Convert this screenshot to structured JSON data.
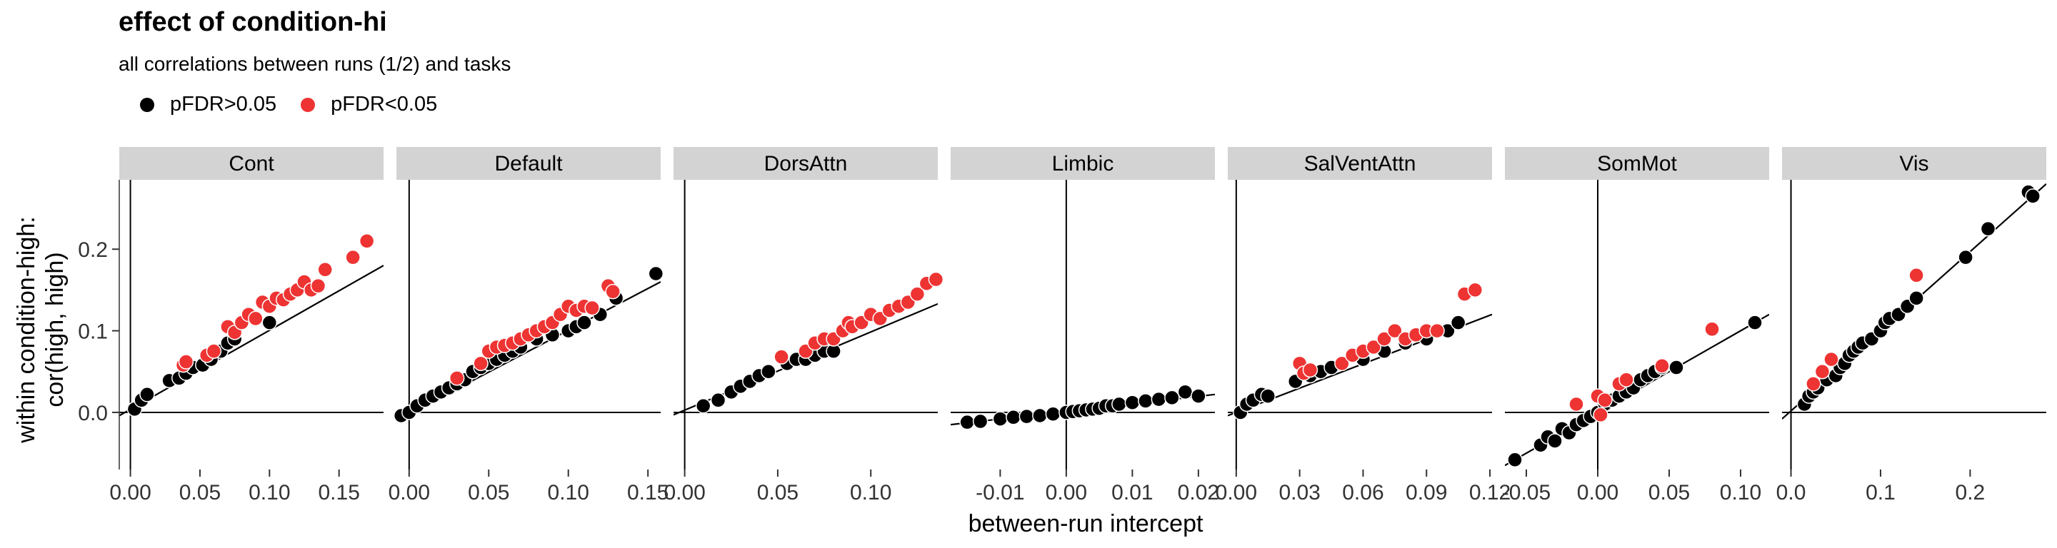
{
  "title": "effect of condition-hi",
  "subtitle": "all correlations between runs (1/2) and tasks",
  "legend": {
    "items": [
      {
        "label": "pFDR>0.05",
        "color": "#000000"
      },
      {
        "label": "pFDR<0.05",
        "color": "#ee3333"
      }
    ]
  },
  "chart_data": {
    "type": "scatter",
    "xlabel": "between-run intercept",
    "ylabel": [
      "within condition-high:",
      "cor(high, high)"
    ],
    "ylim": [
      -0.07,
      0.285
    ],
    "yticks": [
      0.0,
      0.1,
      0.2
    ],
    "ytick_labels": [
      "0.0",
      "0.1",
      "0.2"
    ],
    "facets": [
      {
        "name": "Cont",
        "xlim": [
          -0.008,
          0.182
        ],
        "xticks": [
          0.0,
          0.05,
          0.1,
          0.15
        ],
        "xtick_labels": [
          "0.00",
          "0.05",
          "0.10",
          "0.15"
        ],
        "fit": [
          [
            -0.008,
            -0.004
          ],
          [
            0.182,
            0.18
          ]
        ],
        "points_ns": [
          [
            0.003,
            0.004
          ],
          [
            0.008,
            0.015
          ],
          [
            0.012,
            0.022
          ],
          [
            0.028,
            0.039
          ],
          [
            0.035,
            0.042
          ],
          [
            0.04,
            0.048
          ],
          [
            0.045,
            0.055
          ],
          [
            0.052,
            0.058
          ],
          [
            0.058,
            0.065
          ],
          [
            0.065,
            0.075
          ],
          [
            0.07,
            0.085
          ],
          [
            0.075,
            0.09
          ],
          [
            0.1,
            0.11
          ]
        ],
        "points_sig": [
          [
            0.038,
            0.058
          ],
          [
            0.04,
            0.062
          ],
          [
            0.055,
            0.07
          ],
          [
            0.06,
            0.075
          ],
          [
            0.07,
            0.105
          ],
          [
            0.075,
            0.098
          ],
          [
            0.08,
            0.11
          ],
          [
            0.085,
            0.12
          ],
          [
            0.09,
            0.115
          ],
          [
            0.095,
            0.135
          ],
          [
            0.1,
            0.13
          ],
          [
            0.105,
            0.14
          ],
          [
            0.11,
            0.138
          ],
          [
            0.115,
            0.145
          ],
          [
            0.12,
            0.15
          ],
          [
            0.125,
            0.16
          ],
          [
            0.13,
            0.15
          ],
          [
            0.135,
            0.155
          ],
          [
            0.14,
            0.175
          ],
          [
            0.16,
            0.19
          ],
          [
            0.17,
            0.21
          ]
        ]
      },
      {
        "name": "Default",
        "xlim": [
          -0.008,
          0.158
        ],
        "xticks": [
          0.0,
          0.05,
          0.1,
          0.15
        ],
        "xtick_labels": [
          "0.00",
          "0.05",
          "0.10",
          "0.15"
        ],
        "fit": [
          [
            -0.008,
            -0.01
          ],
          [
            0.158,
            0.16
          ]
        ],
        "points_ns": [
          [
            -0.005,
            -0.004
          ],
          [
            0.0,
            0.0
          ],
          [
            0.005,
            0.008
          ],
          [
            0.01,
            0.015
          ],
          [
            0.015,
            0.02
          ],
          [
            0.02,
            0.025
          ],
          [
            0.025,
            0.03
          ],
          [
            0.03,
            0.035
          ],
          [
            0.035,
            0.04
          ],
          [
            0.04,
            0.05
          ],
          [
            0.045,
            0.055
          ],
          [
            0.05,
            0.06
          ],
          [
            0.055,
            0.065
          ],
          [
            0.06,
            0.07
          ],
          [
            0.065,
            0.075
          ],
          [
            0.07,
            0.08
          ],
          [
            0.08,
            0.09
          ],
          [
            0.09,
            0.095
          ],
          [
            0.1,
            0.1
          ],
          [
            0.105,
            0.105
          ],
          [
            0.11,
            0.11
          ],
          [
            0.12,
            0.12
          ],
          [
            0.13,
            0.14
          ],
          [
            0.155,
            0.17
          ]
        ],
        "points_sig": [
          [
            0.03,
            0.042
          ],
          [
            0.045,
            0.06
          ],
          [
            0.05,
            0.075
          ],
          [
            0.055,
            0.08
          ],
          [
            0.06,
            0.082
          ],
          [
            0.065,
            0.085
          ],
          [
            0.07,
            0.09
          ],
          [
            0.075,
            0.095
          ],
          [
            0.08,
            0.1
          ],
          [
            0.085,
            0.105
          ],
          [
            0.09,
            0.11
          ],
          [
            0.095,
            0.12
          ],
          [
            0.1,
            0.13
          ],
          [
            0.105,
            0.125
          ],
          [
            0.11,
            0.13
          ],
          [
            0.115,
            0.128
          ],
          [
            0.125,
            0.155
          ],
          [
            0.128,
            0.148
          ]
        ]
      },
      {
        "name": "DorsAttn",
        "xlim": [
          -0.006,
          0.136
        ],
        "xticks": [
          0.0,
          0.05,
          0.1
        ],
        "xtick_labels": [
          "0.00",
          "0.05",
          "0.10"
        ],
        "fit": [
          [
            -0.006,
            -0.003
          ],
          [
            0.136,
            0.133
          ]
        ],
        "points_ns": [
          [
            0.01,
            0.008
          ],
          [
            0.018,
            0.015
          ],
          [
            0.025,
            0.025
          ],
          [
            0.03,
            0.032
          ],
          [
            0.035,
            0.038
          ],
          [
            0.04,
            0.045
          ],
          [
            0.045,
            0.05
          ],
          [
            0.055,
            0.06
          ],
          [
            0.06,
            0.065
          ],
          [
            0.065,
            0.065
          ],
          [
            0.07,
            0.07
          ],
          [
            0.075,
            0.075
          ],
          [
            0.08,
            0.075
          ]
        ],
        "points_sig": [
          [
            0.052,
            0.068
          ],
          [
            0.065,
            0.075
          ],
          [
            0.07,
            0.085
          ],
          [
            0.075,
            0.09
          ],
          [
            0.08,
            0.09
          ],
          [
            0.085,
            0.1
          ],
          [
            0.088,
            0.11
          ],
          [
            0.09,
            0.105
          ],
          [
            0.095,
            0.11
          ],
          [
            0.1,
            0.12
          ],
          [
            0.105,
            0.115
          ],
          [
            0.11,
            0.125
          ],
          [
            0.115,
            0.13
          ],
          [
            0.12,
            0.135
          ],
          [
            0.125,
            0.145
          ],
          [
            0.13,
            0.158
          ],
          [
            0.135,
            0.163
          ]
        ]
      },
      {
        "name": "Limbic",
        "xlim": [
          -0.0175,
          0.0225
        ],
        "xticks": [
          -0.01,
          0.0,
          0.01,
          0.02
        ],
        "xtick_labels": [
          "-0.01",
          "0.00",
          "0.01",
          "0.02"
        ],
        "fit": [
          [
            -0.0175,
            -0.015
          ],
          [
            0.0225,
            0.022
          ]
        ],
        "points_ns": [
          [
            -0.015,
            -0.012
          ],
          [
            -0.013,
            -0.011
          ],
          [
            -0.01,
            -0.008
          ],
          [
            -0.008,
            -0.006
          ],
          [
            -0.006,
            -0.005
          ],
          [
            -0.004,
            -0.004
          ],
          [
            -0.002,
            -0.002
          ],
          [
            0.0,
            0.0
          ],
          [
            0.001,
            0.001
          ],
          [
            0.002,
            0.002
          ],
          [
            0.003,
            0.003
          ],
          [
            0.004,
            0.004
          ],
          [
            0.005,
            0.005
          ],
          [
            0.006,
            0.008
          ],
          [
            0.007,
            0.008
          ],
          [
            0.008,
            0.01
          ],
          [
            0.01,
            0.012
          ],
          [
            0.012,
            0.014
          ],
          [
            0.014,
            0.016
          ],
          [
            0.016,
            0.018
          ],
          [
            0.018,
            0.025
          ],
          [
            0.02,
            0.02
          ]
        ],
        "points_sig": []
      },
      {
        "name": "SalVentAttn",
        "xlim": [
          -0.004,
          0.121
        ],
        "xticks": [
          0.0,
          0.03,
          0.06,
          0.09,
          0.12
        ],
        "xtick_labels": [
          "0.00",
          "0.03",
          "0.06",
          "0.09",
          "0.12"
        ],
        "fit": [
          [
            -0.004,
            -0.004
          ],
          [
            0.121,
            0.12
          ]
        ],
        "points_ns": [
          [
            0.002,
            0.0
          ],
          [
            0.005,
            0.01
          ],
          [
            0.008,
            0.015
          ],
          [
            0.012,
            0.022
          ],
          [
            0.015,
            0.02
          ],
          [
            0.028,
            0.038
          ],
          [
            0.035,
            0.045
          ],
          [
            0.04,
            0.05
          ],
          [
            0.045,
            0.055
          ],
          [
            0.06,
            0.065
          ],
          [
            0.07,
            0.075
          ],
          [
            0.08,
            0.085
          ],
          [
            0.09,
            0.09
          ],
          [
            0.1,
            0.1
          ],
          [
            0.105,
            0.11
          ]
        ],
        "points_sig": [
          [
            0.03,
            0.06
          ],
          [
            0.032,
            0.048
          ],
          [
            0.035,
            0.052
          ],
          [
            0.05,
            0.06
          ],
          [
            0.055,
            0.07
          ],
          [
            0.06,
            0.075
          ],
          [
            0.065,
            0.08
          ],
          [
            0.07,
            0.09
          ],
          [
            0.075,
            0.1
          ],
          [
            0.08,
            0.09
          ],
          [
            0.085,
            0.095
          ],
          [
            0.09,
            0.1
          ],
          [
            0.095,
            0.1
          ],
          [
            0.108,
            0.145
          ],
          [
            0.113,
            0.15
          ]
        ]
      },
      {
        "name": "SomMot",
        "xlim": [
          -0.065,
          0.12
        ],
        "xticks": [
          -0.05,
          0.0,
          0.05,
          0.1
        ],
        "xtick_labels": [
          "-0.05",
          "0.00",
          "0.05",
          "0.10"
        ],
        "fit": [
          [
            -0.065,
            -0.065
          ],
          [
            0.12,
            0.12
          ]
        ],
        "points_ns": [
          [
            -0.058,
            -0.058
          ],
          [
            -0.04,
            -0.04
          ],
          [
            -0.035,
            -0.03
          ],
          [
            -0.03,
            -0.035
          ],
          [
            -0.025,
            -0.02
          ],
          [
            -0.02,
            -0.025
          ],
          [
            -0.015,
            -0.015
          ],
          [
            -0.01,
            -0.01
          ],
          [
            -0.005,
            -0.005
          ],
          [
            0.0,
            0.0
          ],
          [
            0.005,
            0.01
          ],
          [
            0.01,
            0.015
          ],
          [
            0.015,
            0.02
          ],
          [
            0.02,
            0.025
          ],
          [
            0.025,
            0.03
          ],
          [
            0.03,
            0.04
          ],
          [
            0.035,
            0.045
          ],
          [
            0.04,
            0.05
          ],
          [
            0.045,
            0.055
          ],
          [
            0.055,
            0.055
          ],
          [
            0.11,
            0.11
          ]
        ],
        "points_sig": [
          [
            -0.015,
            0.01
          ],
          [
            0.0,
            0.02
          ],
          [
            0.005,
            0.015
          ],
          [
            0.015,
            0.035
          ],
          [
            0.02,
            0.04
          ],
          [
            0.045,
            0.057
          ],
          [
            0.08,
            0.102
          ],
          [
            0.002,
            -0.003
          ]
        ]
      },
      {
        "name": "Vis",
        "xlim": [
          -0.01,
          0.285
        ],
        "xticks": [
          0.0,
          0.1,
          0.2
        ],
        "xtick_labels": [
          "0.0",
          "0.1",
          "0.2"
        ],
        "fit": [
          [
            -0.01,
            -0.008
          ],
          [
            0.285,
            0.28
          ]
        ],
        "points_ns": [
          [
            0.015,
            0.01
          ],
          [
            0.02,
            0.02
          ],
          [
            0.025,
            0.025
          ],
          [
            0.03,
            0.03
          ],
          [
            0.04,
            0.04
          ],
          [
            0.05,
            0.045
          ],
          [
            0.055,
            0.055
          ],
          [
            0.06,
            0.06
          ],
          [
            0.065,
            0.07
          ],
          [
            0.07,
            0.075
          ],
          [
            0.075,
            0.08
          ],
          [
            0.08,
            0.085
          ],
          [
            0.09,
            0.09
          ],
          [
            0.1,
            0.1
          ],
          [
            0.105,
            0.11
          ],
          [
            0.11,
            0.115
          ],
          [
            0.12,
            0.12
          ],
          [
            0.13,
            0.13
          ],
          [
            0.14,
            0.14
          ],
          [
            0.195,
            0.19
          ],
          [
            0.22,
            0.225
          ],
          [
            0.265,
            0.27
          ],
          [
            0.27,
            0.265
          ]
        ],
        "points_sig": [
          [
            0.025,
            0.035
          ],
          [
            0.035,
            0.05
          ],
          [
            0.045,
            0.065
          ],
          [
            0.14,
            0.168
          ]
        ]
      }
    ]
  }
}
